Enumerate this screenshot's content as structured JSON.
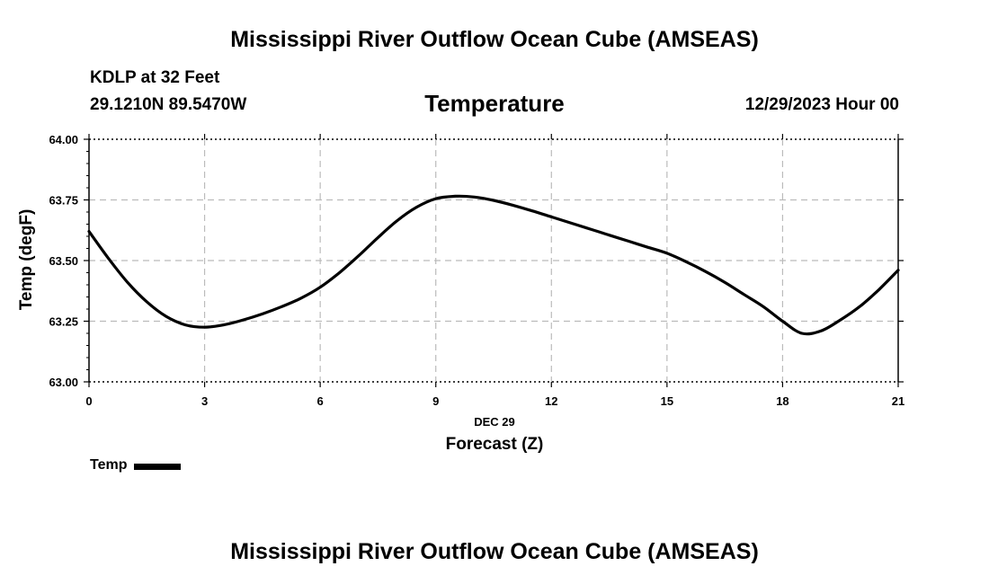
{
  "header": {
    "title": "Mississippi River Outflow Ocean Cube (AMSEAS)",
    "station": "KDLP at 32 Feet",
    "coords": "29.1210N  89.5470W",
    "run": "12/29/2023 Hour 00"
  },
  "footer": {
    "title": "Mississippi River Outflow Ocean Cube (AMSEAS)"
  },
  "legend": {
    "label": "Temp"
  },
  "chart_data": {
    "type": "line",
    "title": "Temperature",
    "xlabel": "Forecast (Z)",
    "xdate": "DEC 29",
    "ylabel": "Temp (degF)",
    "xlim": [
      0,
      21
    ],
    "ylim": [
      63.0,
      64.0
    ],
    "xticks": [
      "0",
      "3",
      "6",
      "9",
      "12",
      "15",
      "18",
      "21"
    ],
    "yticks": [
      "63.00",
      "63.25",
      "63.50",
      "63.75",
      "64.00"
    ],
    "grid": true,
    "series": [
      {
        "name": "Temp",
        "color": "#000000",
        "x": [
          0,
          0.5,
          1,
          1.5,
          2,
          2.5,
          3,
          3.5,
          4,
          4.5,
          5,
          5.5,
          6,
          6.5,
          7,
          7.5,
          8,
          8.5,
          9,
          9.5,
          10,
          10.5,
          11,
          11.5,
          12,
          12.5,
          13,
          13.5,
          14,
          14.5,
          15,
          15.5,
          16,
          16.5,
          17,
          17.5,
          18,
          18.5,
          19,
          19.5,
          20,
          20.5,
          21
        ],
        "values": [
          63.62,
          63.51,
          63.41,
          63.33,
          63.27,
          63.235,
          63.225,
          63.235,
          63.255,
          63.28,
          63.31,
          63.345,
          63.39,
          63.45,
          63.52,
          63.595,
          63.665,
          63.72,
          63.755,
          63.765,
          63.762,
          63.748,
          63.728,
          63.705,
          63.68,
          63.655,
          63.63,
          63.605,
          63.58,
          63.555,
          63.53,
          63.495,
          63.455,
          63.41,
          63.36,
          63.31,
          63.25,
          63.2,
          63.21,
          63.255,
          63.31,
          63.38,
          63.46
        ]
      }
    ]
  }
}
